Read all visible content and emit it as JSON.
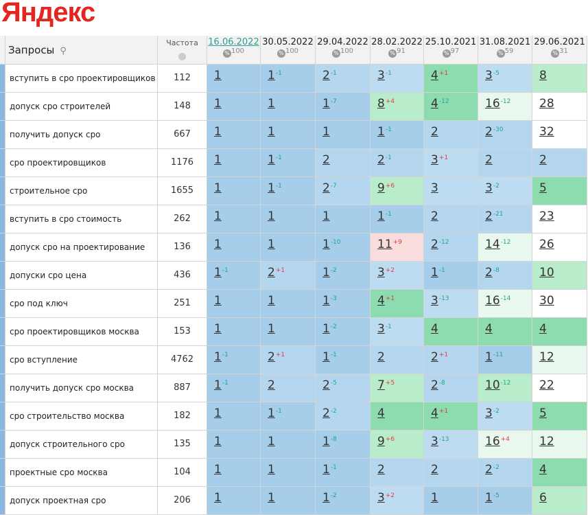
{
  "logo": "Яндекс",
  "table": {
    "headers": {
      "query": "Запросы",
      "frequency": "Частота",
      "dates": [
        {
          "date": "16.06.2022",
          "percent": 100
        },
        {
          "date": "30.05.2022",
          "percent": 100
        },
        {
          "date": "29.04.2022",
          "percent": 100
        },
        {
          "date": "28.02.2022",
          "percent": 91
        },
        {
          "date": "25.10.2021",
          "percent": 97
        },
        {
          "date": "31.08.2021",
          "percent": 59
        },
        {
          "date": "29.06.2021",
          "percent": 31
        }
      ]
    },
    "rows": [
      {
        "query": "вступить в сро проектировщиков",
        "frequency": 112,
        "positions": [
          {
            "value": 1
          },
          {
            "value": 1,
            "delta": "-1"
          },
          {
            "value": 2,
            "delta": "-1"
          },
          {
            "value": 3,
            "delta": "-1"
          },
          {
            "value": 4,
            "delta": "+1"
          },
          {
            "value": 3,
            "delta": "-5"
          },
          {
            "value": 8
          }
        ]
      },
      {
        "query": "допуск сро строителей",
        "frequency": 148,
        "positions": [
          {
            "value": 1
          },
          {
            "value": 1
          },
          {
            "value": 1,
            "delta": "-7"
          },
          {
            "value": 8,
            "delta": "+4"
          },
          {
            "value": 4,
            "delta": "-12"
          },
          {
            "value": 16,
            "delta": "-12"
          },
          {
            "value": 28
          }
        ]
      },
      {
        "query": "получить допуск сро",
        "frequency": 667,
        "positions": [
          {
            "value": 1
          },
          {
            "value": 1
          },
          {
            "value": 1
          },
          {
            "value": 1,
            "delta": "-1"
          },
          {
            "value": 2
          },
          {
            "value": 2,
            "delta": "-30"
          },
          {
            "value": 32
          }
        ]
      },
      {
        "query": "сро проектировщиков",
        "frequency": 1176,
        "positions": [
          {
            "value": 1
          },
          {
            "value": 1,
            "delta": "-1"
          },
          {
            "value": 2
          },
          {
            "value": 2,
            "delta": "-1"
          },
          {
            "value": 3,
            "delta": "+1"
          },
          {
            "value": 2
          },
          {
            "value": 2
          }
        ]
      },
      {
        "query": "строительное сро",
        "frequency": 1655,
        "positions": [
          {
            "value": 1
          },
          {
            "value": 1,
            "delta": "-1"
          },
          {
            "value": 2,
            "delta": "-7"
          },
          {
            "value": 9,
            "delta": "+6"
          },
          {
            "value": 3
          },
          {
            "value": 3,
            "delta": "-2"
          },
          {
            "value": 5
          }
        ]
      },
      {
        "query": "вступить в сро стоимость",
        "frequency": 262,
        "positions": [
          {
            "value": 1
          },
          {
            "value": 1
          },
          {
            "value": 1
          },
          {
            "value": 1,
            "delta": "-1"
          },
          {
            "value": 2
          },
          {
            "value": 2,
            "delta": "-21"
          },
          {
            "value": 23
          }
        ]
      },
      {
        "query": "допуск сро на проектирование",
        "frequency": 136,
        "positions": [
          {
            "value": 1
          },
          {
            "value": 1
          },
          {
            "value": 1,
            "delta": "-10"
          },
          {
            "value": 11,
            "delta": "+9"
          },
          {
            "value": 2,
            "delta": "-12"
          },
          {
            "value": 14,
            "delta": "-12"
          },
          {
            "value": 26
          }
        ]
      },
      {
        "query": "допуски сро цена",
        "frequency": 436,
        "positions": [
          {
            "value": 1,
            "delta": "-1"
          },
          {
            "value": 2,
            "delta": "+1"
          },
          {
            "value": 1,
            "delta": "-2"
          },
          {
            "value": 3,
            "delta": "+2"
          },
          {
            "value": 1,
            "delta": "-1"
          },
          {
            "value": 2,
            "delta": "-8"
          },
          {
            "value": 10
          }
        ]
      },
      {
        "query": "сро под ключ",
        "frequency": 251,
        "positions": [
          {
            "value": 1
          },
          {
            "value": 1
          },
          {
            "value": 1,
            "delta": "-3"
          },
          {
            "value": 4,
            "delta": "+1"
          },
          {
            "value": 3,
            "delta": "-13"
          },
          {
            "value": 16,
            "delta": "-14"
          },
          {
            "value": 30
          }
        ]
      },
      {
        "query": "сро проектировщиков москва",
        "frequency": 153,
        "positions": [
          {
            "value": 1
          },
          {
            "value": 1
          },
          {
            "value": 1,
            "delta": "-2"
          },
          {
            "value": 3,
            "delta": "-1"
          },
          {
            "value": 4
          },
          {
            "value": 4
          },
          {
            "value": 4
          }
        ]
      },
      {
        "query": "сро вступление",
        "frequency": 4762,
        "positions": [
          {
            "value": 1,
            "delta": "-1"
          },
          {
            "value": 2,
            "delta": "+1"
          },
          {
            "value": 1,
            "delta": "-1"
          },
          {
            "value": 2
          },
          {
            "value": 2,
            "delta": "+1"
          },
          {
            "value": 1,
            "delta": "-11"
          },
          {
            "value": 12
          }
        ]
      },
      {
        "query": "получить допуск сро москва",
        "frequency": 887,
        "positions": [
          {
            "value": 1,
            "delta": "-1"
          },
          {
            "value": 2
          },
          {
            "value": 2,
            "delta": "-5"
          },
          {
            "value": 7,
            "delta": "+5"
          },
          {
            "value": 2,
            "delta": "-8"
          },
          {
            "value": 10,
            "delta": "-12"
          },
          {
            "value": 22
          }
        ]
      },
      {
        "query": "сро строительство москва",
        "frequency": 182,
        "positions": [
          {
            "value": 1
          },
          {
            "value": 1,
            "delta": "-1"
          },
          {
            "value": 2,
            "delta": "-2"
          },
          {
            "value": 4
          },
          {
            "value": 4,
            "delta": "+1"
          },
          {
            "value": 3,
            "delta": "-2"
          },
          {
            "value": 5
          }
        ]
      },
      {
        "query": "допуск строительного сро",
        "frequency": 135,
        "positions": [
          {
            "value": 1
          },
          {
            "value": 1
          },
          {
            "value": 1,
            "delta": "-8"
          },
          {
            "value": 9,
            "delta": "+6"
          },
          {
            "value": 3,
            "delta": "-13"
          },
          {
            "value": 16,
            "delta": "+4"
          },
          {
            "value": 12
          }
        ]
      },
      {
        "query": "проектные сро москва",
        "frequency": 104,
        "positions": [
          {
            "value": 1
          },
          {
            "value": 1
          },
          {
            "value": 1,
            "delta": "-1"
          },
          {
            "value": 2
          },
          {
            "value": 2
          },
          {
            "value": 2,
            "delta": "-2"
          },
          {
            "value": 4
          }
        ]
      },
      {
        "query": "допуск проектная сро",
        "frequency": 206,
        "positions": [
          {
            "value": 1
          },
          {
            "value": 1
          },
          {
            "value": 1,
            "delta": "-2"
          },
          {
            "value": 3,
            "delta": "+2"
          },
          {
            "value": 1
          },
          {
            "value": 1,
            "delta": "-5"
          },
          {
            "value": 6
          }
        ]
      }
    ]
  }
}
